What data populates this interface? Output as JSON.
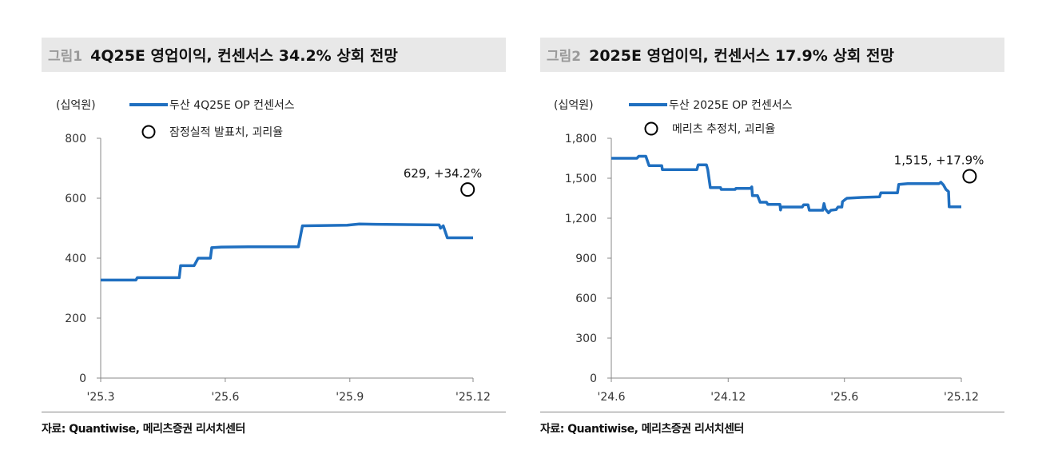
{
  "panels": [
    {
      "figure_label": "그림1",
      "title": "4Q25E 영업이익, 컨센서스 34.2% 상회 전망",
      "source": "자료: Quantiwise, 메리츠증권 리서치센터"
    },
    {
      "figure_label": "그림2",
      "title": "2025E 영업이익, 컨센서스 17.9% 상회 전망",
      "source": "자료: Quantiwise, 메리츠증권 리서치센터"
    }
  ],
  "chart_data": [
    {
      "type": "line",
      "unit_label": "(십억원)",
      "ylim": [
        0,
        800
      ],
      "yticks": [
        0,
        200,
        400,
        600,
        800
      ],
      "xlim": [
        "2025-03-01",
        "2025-12-01"
      ],
      "xticks": [
        {
          "label": "'25.3",
          "date": "2025-03-01"
        },
        {
          "label": "'25.6",
          "date": "2025-06-01"
        },
        {
          "label": "'25.9",
          "date": "2025-09-01"
        },
        {
          "label": "'25.12",
          "date": "2025-12-01"
        }
      ],
      "grid": false,
      "line_color": "#1f6fc0",
      "series": [
        {
          "name": "두산 4Q25E OP 컨센서스",
          "points": [
            [
              "2025-03-01",
              327
            ],
            [
              "2025-03-27",
              327
            ],
            [
              "2025-03-28",
              335
            ],
            [
              "2025-04-28",
              335
            ],
            [
              "2025-04-29",
              375
            ],
            [
              "2025-05-09",
              375
            ],
            [
              "2025-05-12",
              400
            ],
            [
              "2025-05-21",
              400
            ],
            [
              "2025-05-22",
              435
            ],
            [
              "2025-05-29",
              437
            ],
            [
              "2025-06-18",
              438
            ],
            [
              "2025-07-25",
              438
            ],
            [
              "2025-07-28",
              508
            ],
            [
              "2025-08-30",
              510
            ],
            [
              "2025-09-08",
              514
            ],
            [
              "2025-09-20",
              513
            ],
            [
              "2025-11-06",
              511
            ],
            [
              "2025-11-07",
              500
            ],
            [
              "2025-11-09",
              508
            ],
            [
              "2025-11-12",
              468
            ],
            [
              "2025-12-01",
              468
            ]
          ]
        }
      ],
      "marker": {
        "name": "잠정실적 발표치, 괴리율",
        "date": "2025-11-27",
        "value": 629,
        "label": "629, +34.2%"
      }
    },
    {
      "type": "line",
      "unit_label": "(십억원)",
      "ylim": [
        0,
        1800
      ],
      "yticks": [
        0,
        300,
        600,
        900,
        1200,
        1500,
        1800
      ],
      "ytick_labels": [
        "0",
        "300",
        "600",
        "900",
        "1,200",
        "1,500",
        "1,800"
      ],
      "xlim": [
        "2024-06-01",
        "2025-12-01"
      ],
      "xticks": [
        {
          "label": "'24.6",
          "date": "2024-06-01"
        },
        {
          "label": "'24.12",
          "date": "2024-12-01"
        },
        {
          "label": "'25.6",
          "date": "2025-06-01"
        },
        {
          "label": "'25.12",
          "date": "2025-12-01"
        }
      ],
      "grid": false,
      "line_color": "#1f6fc0",
      "series": [
        {
          "name": "두산 2025E OP 컨센서스",
          "points": [
            [
              "2024-06-01",
              1650
            ],
            [
              "2024-07-11",
              1650
            ],
            [
              "2024-07-14",
              1665
            ],
            [
              "2024-07-25",
              1665
            ],
            [
              "2024-07-30",
              1595
            ],
            [
              "2024-08-19",
              1595
            ],
            [
              "2024-08-20",
              1565
            ],
            [
              "2024-10-13",
              1565
            ],
            [
              "2024-10-15",
              1600
            ],
            [
              "2024-10-28",
              1600
            ],
            [
              "2024-10-30",
              1565
            ],
            [
              "2024-11-03",
              1430
            ],
            [
              "2024-11-19",
              1430
            ],
            [
              "2024-11-20",
              1416
            ],
            [
              "2024-12-12",
              1416
            ],
            [
              "2024-12-13",
              1424
            ],
            [
              "2025-01-05",
              1424
            ],
            [
              "2025-01-07",
              1435
            ],
            [
              "2025-01-08",
              1370
            ],
            [
              "2025-01-16",
              1370
            ],
            [
              "2025-01-20",
              1320
            ],
            [
              "2025-01-30",
              1320
            ],
            [
              "2025-02-01",
              1304
            ],
            [
              "2025-02-20",
              1304
            ],
            [
              "2025-02-21",
              1262
            ],
            [
              "2025-02-22",
              1284
            ],
            [
              "2025-03-27",
              1284
            ],
            [
              "2025-03-29",
              1300
            ],
            [
              "2025-04-05",
              1300
            ],
            [
              "2025-04-07",
              1260
            ],
            [
              "2025-04-28",
              1260
            ],
            [
              "2025-04-30",
              1310
            ],
            [
              "2025-05-02",
              1270
            ],
            [
              "2025-05-07",
              1240
            ],
            [
              "2025-05-11",
              1260
            ],
            [
              "2025-05-19",
              1264
            ],
            [
              "2025-05-22",
              1284
            ],
            [
              "2025-05-28",
              1284
            ],
            [
              "2025-05-29",
              1324
            ],
            [
              "2025-06-02",
              1340
            ],
            [
              "2025-06-05",
              1350
            ],
            [
              "2025-06-28",
              1356
            ],
            [
              "2025-07-26",
              1360
            ],
            [
              "2025-07-28",
              1390
            ],
            [
              "2025-08-23",
              1390
            ],
            [
              "2025-08-25",
              1454
            ],
            [
              "2025-09-08",
              1460
            ],
            [
              "2025-10-27",
              1460
            ],
            [
              "2025-10-30",
              1470
            ],
            [
              "2025-11-03",
              1450
            ],
            [
              "2025-11-07",
              1416
            ],
            [
              "2025-11-11",
              1400
            ],
            [
              "2025-11-12",
              1286
            ],
            [
              "2025-12-01",
              1286
            ]
          ]
        }
      ],
      "marker": {
        "name": "메리츠 추정치, 괴리율",
        "date": "2025-12-14",
        "value": 1515,
        "label": "1,515, +17.9%"
      }
    }
  ]
}
